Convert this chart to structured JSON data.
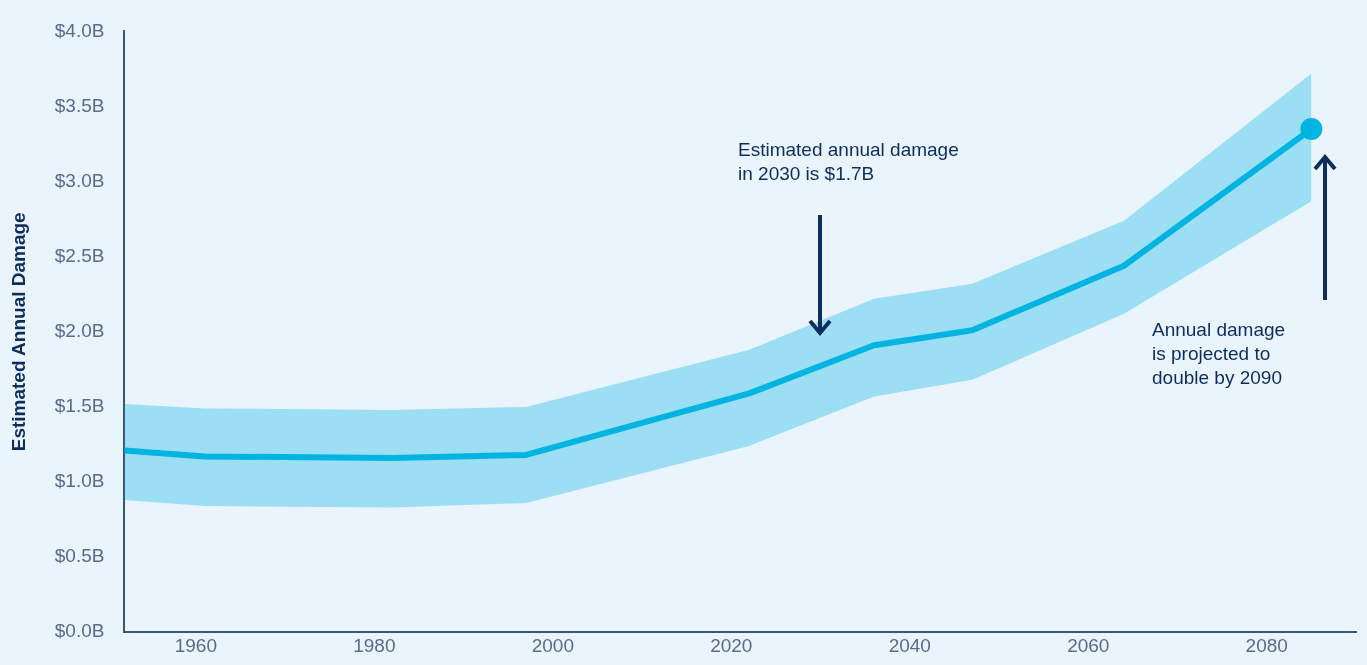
{
  "chart_data": {
    "type": "line",
    "ylabel": "Estimated Annual Damage",
    "x": [
      1952,
      1961,
      1982,
      1997,
      2022,
      2036,
      2047,
      2064,
      2085
    ],
    "series": [
      {
        "color": "#00b5e2",
        "marker": "none",
        "values": [
          1.21,
          1.17,
          1.16,
          1.18,
          1.59,
          1.91,
          2.01,
          2.44,
          3.35
        ],
        "lower": [
          0.88,
          0.84,
          0.83,
          0.86,
          1.24,
          1.57,
          1.68,
          2.12,
          2.87
        ],
        "upper": [
          1.52,
          1.49,
          1.48,
          1.5,
          1.88,
          2.22,
          2.32,
          2.74,
          3.72
        ]
      },
      {
        "type": "scatter",
        "color": "#00b5e2",
        "marker": "circle",
        "x": [
          2085
        ],
        "values": [
          3.35
        ]
      }
    ],
    "xlim": [
      1952,
      2090
    ],
    "xticks": [
      1960,
      1980,
      2000,
      2020,
      2040,
      2060,
      2080
    ],
    "ylim": [
      0,
      4
    ],
    "yticks": [
      {
        "value": 0,
        "label": "$0.0B"
      },
      {
        "value": 0.5,
        "label": "$0.5B"
      },
      {
        "value": 1,
        "label": "$1.0B"
      },
      {
        "value": 1.5,
        "label": "$1.5B"
      },
      {
        "value": 2,
        "label": "$2.0B"
      },
      {
        "value": 2.5,
        "label": "$2.5B"
      },
      {
        "value": 3,
        "label": "$3.0B"
      },
      {
        "value": 3.5,
        "label": "$3.5B"
      },
      {
        "value": 4,
        "label": "$4.0B"
      }
    ],
    "grid": false,
    "legend": false,
    "annotations": [
      "Estimated annual damage\nin 2030 is $1.7B",
      "Annual damage\nis projected to\ndouble by 2090"
    ]
  }
}
